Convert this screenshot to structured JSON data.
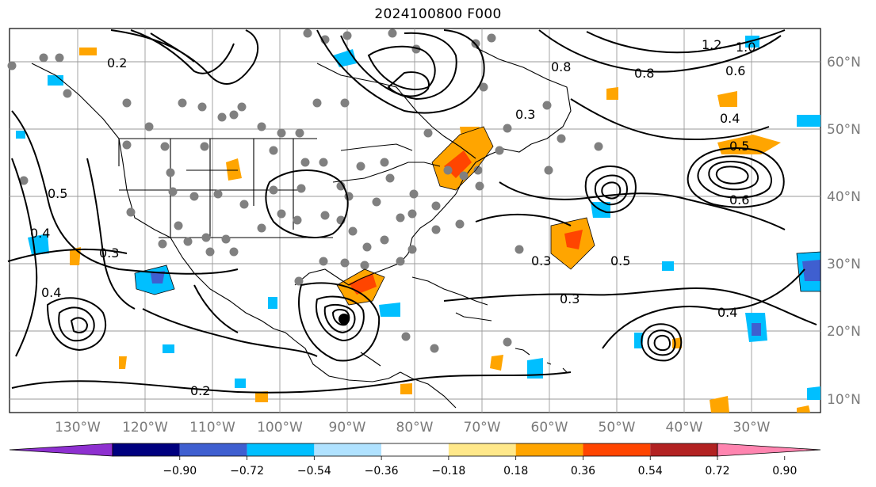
{
  "title": "2024100800 F000",
  "map": {
    "lon_ticks": [
      "130°W",
      "120°W",
      "110°W",
      "100°W",
      "90°W",
      "80°W",
      "70°W",
      "60°W",
      "50°W",
      "40°W",
      "30°W"
    ],
    "lat_ticks": [
      "60°N",
      "50°N",
      "40°N",
      "30°N",
      "20°N",
      "10°N"
    ],
    "contour_labels": [
      "0.2",
      "0.3",
      "0.4",
      "0.5",
      "0.6",
      "0.8",
      "1.0",
      "1.2",
      "0.3",
      "0.4",
      "0.5",
      "0.2",
      "0.4",
      "0.3",
      "0.5",
      "0.4",
      "0.3",
      "0.6",
      "0.8"
    ]
  },
  "colorbar": {
    "colors": [
      "#8e30d0",
      "#00007f",
      "#3f5fd0",
      "#00bfff",
      "#b0e2ff",
      "#ffffff",
      "#ffe88a",
      "#ffa500",
      "#ff4500",
      "#b22222",
      "#ff85b0"
    ],
    "ticks": [
      "−0.90",
      "−0.72",
      "−0.54",
      "−0.36",
      "−0.18",
      "0.18",
      "0.36",
      "0.54",
      "0.72",
      "0.90"
    ]
  }
}
